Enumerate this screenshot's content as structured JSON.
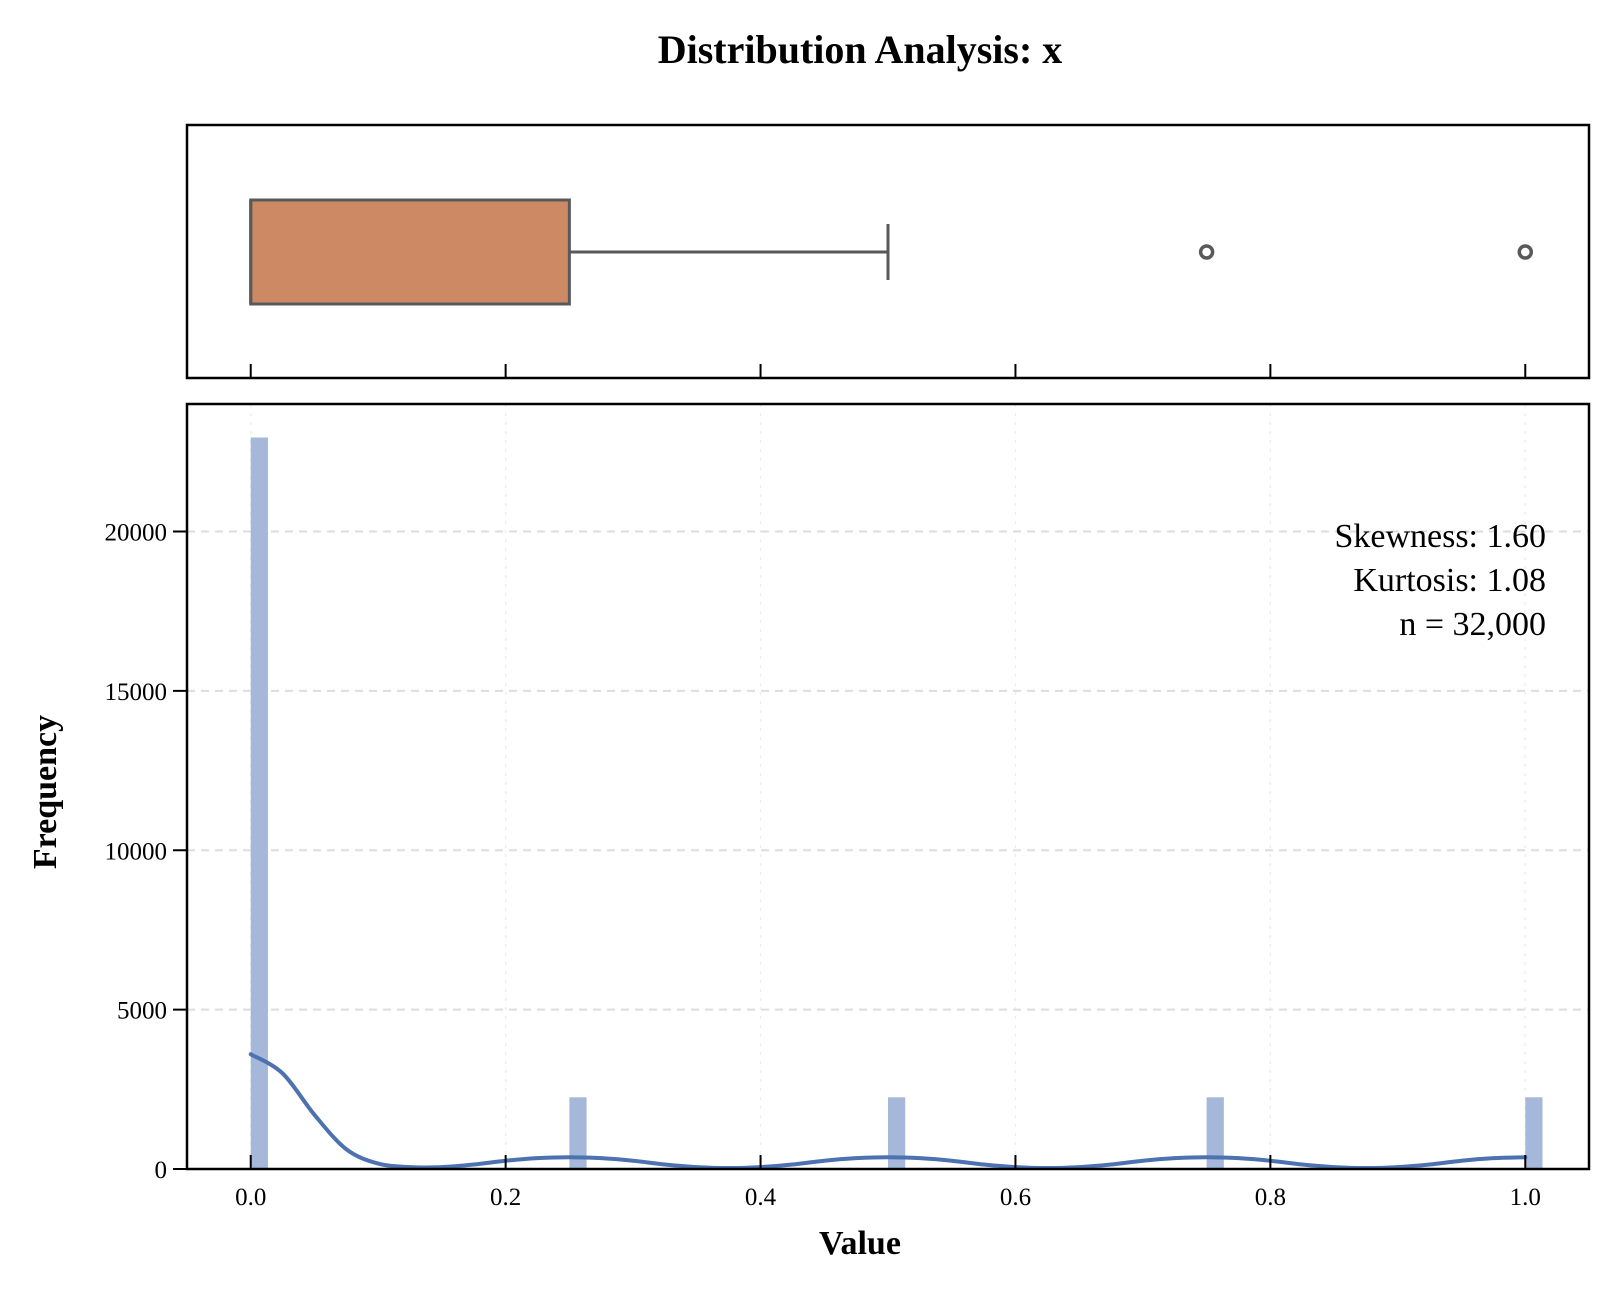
{
  "chart_data": {
    "title": "Distribution Analysis: x",
    "colors": {
      "box_fill": "#CC8963",
      "box_edge": "#595959",
      "hist_bar": "#A5B8D9",
      "kde_line": "#4C72B0",
      "grid": "#DDDDDD",
      "axis": "#000000"
    },
    "boxplot": {
      "type": "box",
      "min": 0.0,
      "q1": 0.0,
      "median": 0.0,
      "q3": 0.25,
      "whisker_low": 0.0,
      "whisker_high": 0.5,
      "outliers": [
        0.75,
        1.0
      ],
      "xlim": [
        -0.05,
        1.05
      ]
    },
    "histogram": {
      "type": "bar",
      "xlabel": "Value",
      "ylabel": "Frequency",
      "xlim": [
        -0.05,
        1.05
      ],
      "ylim": [
        0,
        24000
      ],
      "x_ticks": [
        0.0,
        0.2,
        0.4,
        0.6,
        0.8,
        1.0
      ],
      "x_tick_labels": [
        "0.0",
        "0.2",
        "0.4",
        "0.6",
        "0.8",
        "1.0"
      ],
      "y_ticks": [
        0,
        5000,
        10000,
        15000,
        20000
      ],
      "y_tick_labels": [
        "0",
        "5000",
        "10000",
        "15000",
        "20000"
      ],
      "grid": true,
      "bar_width": 0.0135,
      "bars": [
        {
          "x": 0.0,
          "value": 22950
        },
        {
          "x": 0.25,
          "value": 2250
        },
        {
          "x": 0.5,
          "value": 2250
        },
        {
          "x": 0.75,
          "value": 2250
        },
        {
          "x": 1.0,
          "value": 2250
        }
      ],
      "kde": {
        "x": [
          0.0,
          0.025,
          0.05,
          0.075,
          0.1,
          0.125,
          0.15,
          0.175,
          0.2,
          0.225,
          0.25,
          0.275,
          0.3,
          0.325,
          0.35,
          0.375,
          0.4,
          0.425,
          0.45,
          0.475,
          0.5,
          0.525,
          0.55,
          0.575,
          0.6,
          0.625,
          0.65,
          0.675,
          0.7,
          0.725,
          0.75,
          0.775,
          0.8,
          0.825,
          0.85,
          0.875,
          0.9,
          0.925,
          0.95,
          0.975,
          1.0
        ],
        "y": [
          3600,
          3000,
          1700,
          620,
          170,
          60,
          60,
          140,
          260,
          340,
          370,
          340,
          260,
          140,
          60,
          30,
          60,
          140,
          260,
          340,
          370,
          340,
          260,
          140,
          60,
          30,
          60,
          140,
          260,
          340,
          370,
          340,
          260,
          140,
          60,
          30,
          60,
          140,
          260,
          340,
          370
        ]
      }
    },
    "stats": {
      "skewness": "Skewness: 1.60",
      "kurtosis": "Kurtosis: 1.08",
      "n": "n = 32,000"
    }
  }
}
